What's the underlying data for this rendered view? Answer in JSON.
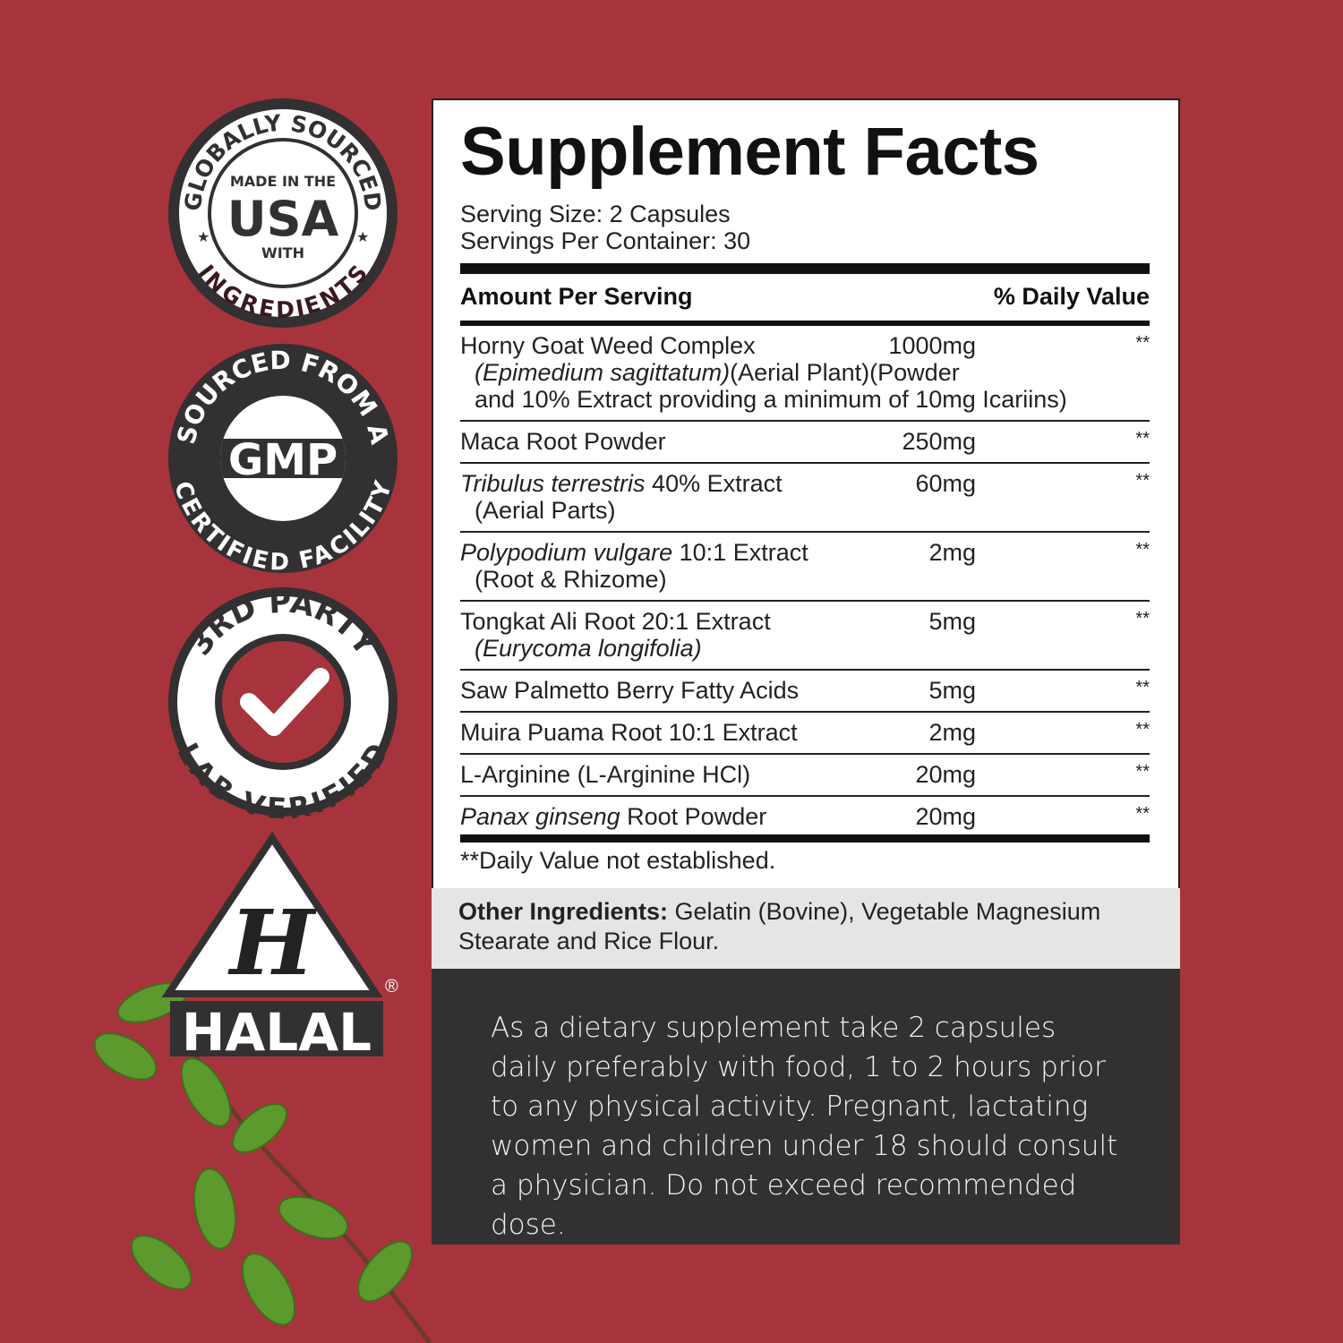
{
  "colors": {
    "background": "#a7343c",
    "dark": "#333031",
    "panel": "#ffffff",
    "other_bg": "#e5e5e6"
  },
  "badges": {
    "usa": {
      "top": "GLOBALLY SOURCED",
      "line1": "MADE IN THE",
      "big": "USA",
      "line3": "WITH",
      "bottom": "INGREDIENTS"
    },
    "gmp": {
      "top": "SOURCED FROM A",
      "big": "GMP",
      "bottom": "CERTIFIED FACILITY"
    },
    "lab": {
      "top": "3RD PARTY",
      "bottom": "LAB VERIFIED",
      "icon": "checkmark-icon"
    },
    "halal": {
      "letter": "H",
      "label": "HALAL",
      "mark": "®"
    }
  },
  "facts": {
    "title": "Supplement Facts",
    "serving_size": "Serving Size: 2 Capsules",
    "servings_per_container": "Servings Per Container: 30",
    "header_left": "Amount Per Serving",
    "header_right": "% Daily Value",
    "rows": [
      {
        "name": [
          {
            "t": "Horny Goat Weed Complex"
          }
        ],
        "desc": [
          [
            {
              "t": "(Epimedium sagittatum)",
              "i": true
            },
            {
              "t": "(Aerial Plant)(Powder"
            }
          ],
          [
            {
              "t": "and 10% Extract providing a minimum of 10mg Icariins)"
            }
          ]
        ],
        "amount": "1000mg",
        "dv": "**"
      },
      {
        "name": [
          {
            "t": "Maca Root Powder"
          }
        ],
        "desc": [],
        "amount": "250mg",
        "dv": "**"
      },
      {
        "name": [
          {
            "t": "Tribulus terrestris",
            "i": true
          },
          {
            "t": " 40% Extract"
          }
        ],
        "desc": [
          [
            {
              "t": "(Aerial Parts)"
            }
          ]
        ],
        "amount": "60mg",
        "dv": "**"
      },
      {
        "name": [
          {
            "t": "Polypodium vulgare",
            "i": true
          },
          {
            "t": " 10:1 Extract"
          }
        ],
        "desc": [
          [
            {
              "t": "(Root & Rhizome)"
            }
          ]
        ],
        "amount": "2mg",
        "dv": "**"
      },
      {
        "name": [
          {
            "t": "Tongkat Ali Root 20:1 Extract"
          }
        ],
        "desc": [
          [
            {
              "t": "(Eurycoma longifolia)",
              "i": true
            }
          ]
        ],
        "amount": "5mg",
        "dv": "**"
      },
      {
        "name": [
          {
            "t": "Saw Palmetto Berry Fatty Acids"
          }
        ],
        "desc": [],
        "amount": "5mg",
        "dv": "**"
      },
      {
        "name": [
          {
            "t": "Muira Puama Root 10:1 Extract"
          }
        ],
        "desc": [],
        "amount": "2mg",
        "dv": "**"
      },
      {
        "name": [
          {
            "t": "L-Arginine (L-Arginine HCl)"
          }
        ],
        "desc": [],
        "amount": "20mg",
        "dv": "**"
      },
      {
        "name": [
          {
            "t": "Panax ginseng",
            "i": true
          },
          {
            "t": " Root Powder"
          }
        ],
        "desc": [],
        "amount": "20mg",
        "dv": "**"
      }
    ],
    "footnote": "**Daily Value not established."
  },
  "other_ingredients": {
    "label": "Other Ingredients:",
    "text": " Gelatin (Bovine), Vegetable Magnesium Stearate and Rice Flour."
  },
  "directions": "As a dietary supplement take 2 capsules daily preferably with food, 1 to 2 hours prior to any physical activity. Pregnant, lactating women and children under 18 should consult a physician. Do not exceed recommended dose."
}
